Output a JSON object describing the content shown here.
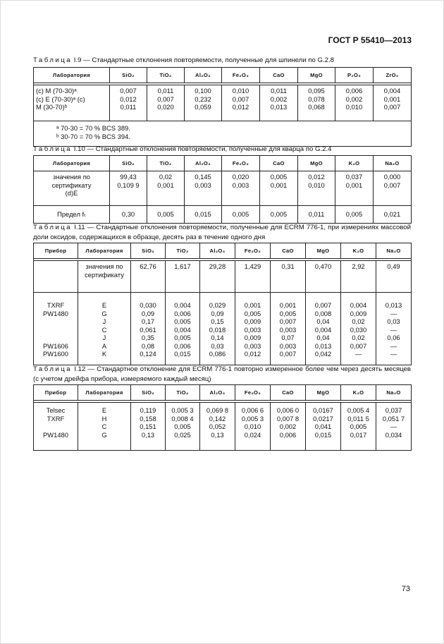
{
  "header": {
    "doc_code": "ГОСТ Р 55410—2013"
  },
  "page_number": "73",
  "tables": [
    {
      "caption_word": "Таблица",
      "caption_text": "I.9 — Стандартные отклонения повторяемости, полученные для шпинели по G.2.8",
      "columns": [
        "Лаборатория",
        "SiO₂",
        "TiO₂",
        "Al₂O₃",
        "Fe₂O₃",
        "CaO",
        "MgO",
        "P₂O₅",
        "ZrO₂"
      ],
      "rows": [
        [
          [
            "(с) M (70-30)ᵃ",
            "(с) E (70-30)ᵃ (с)",
            "M (30-70)ᵇ"
          ],
          [
            "0,007",
            "0,012",
            "0,011"
          ],
          [
            "0,011",
            "0,007",
            "0,020"
          ],
          [
            "0,100",
            "0,232",
            "0,059"
          ],
          [
            "0,010",
            "0,007",
            "0,012"
          ],
          [
            "0,011",
            "0,002",
            "0,013"
          ],
          [
            "0,095",
            "0,078",
            "0,068"
          ],
          [
            "0,006",
            "0,002",
            "0,010"
          ],
          [
            "0,004",
            "0,001",
            "0,007"
          ]
        ]
      ],
      "footnotes": [
        "ᵃ 70-30 = 70 % BCS 389.",
        "ᵇ 30-70 = 70 % BCS 394."
      ]
    },
    {
      "caption_word": "Таблица",
      "caption_text": "I.10 — Стандартные отклонения повторяемости, полученные для кварца по G.2.4",
      "columns": [
        "Лаборатория",
        "SiO₂",
        "TiO₂",
        "Al₂O₃",
        "Fe₂O₃",
        "CaO",
        "MgO",
        "K₂O",
        "Na₂O"
      ],
      "rows": [
        [
          [
            "значения по",
            "сертификату",
            "(d)E"
          ],
          [
            "99,43",
            "0,109 9"
          ],
          [
            "0,02",
            "0,001"
          ],
          [
            "0,145",
            "0,003"
          ],
          [
            "0,020",
            "0,003"
          ],
          [
            "0,005",
            "0,001"
          ],
          [
            "0,012",
            "0,010"
          ],
          [
            "0,037",
            "0,001"
          ],
          [
            "0,000",
            "0,007"
          ]
        ],
        [
          [
            "Предел fₜ"
          ],
          [
            "0,30"
          ],
          [
            "0,005"
          ],
          [
            "0,015"
          ],
          [
            "0,005"
          ],
          [
            "0,005"
          ],
          [
            "0,011"
          ],
          [
            "0,005"
          ],
          [
            "0,021"
          ]
        ]
      ]
    },
    {
      "caption_word": "Таблица",
      "caption_text": "I.11 — Стандартные отклонения повторяемости, полученные для ECRM 776-1, при измерениях массовой доли оксидов, содержащихся в образце,  десять раз в течение одного дня",
      "columns": [
        "Прибор",
        "Лаборатория",
        "SiO₂",
        "TiO₂",
        "Al₂O₃",
        "Fe₂O₃",
        "CaO",
        "MgO",
        "K₂O",
        "Na₂O"
      ],
      "rows": [
        [
          [
            ""
          ],
          [
            "значения по",
            "сертификату"
          ],
          [
            "62,76"
          ],
          [
            "1,617"
          ],
          [
            "29,28"
          ],
          [
            "1,429"
          ],
          [
            "0,31"
          ],
          [
            "0,470"
          ],
          [
            "2,92"
          ],
          [
            "0,49"
          ]
        ],
        [
          [
            "TXRF",
            "PW1480",
            "",
            "",
            "",
            "PW1606",
            "PW1600"
          ],
          [
            "E",
            "G",
            "J",
            "C",
            "J",
            "A",
            "K"
          ],
          [
            "0,030",
            "0,09",
            "0,17",
            "0,061",
            "0,35",
            "0,08",
            "0,124"
          ],
          [
            "0,004",
            "0,006",
            "0,005",
            "0,004",
            "0,005",
            "0,006",
            "0,015"
          ],
          [
            "0,029",
            "0,09",
            "0,15",
            "0,018",
            "0,14",
            "0,03",
            "0,086"
          ],
          [
            "0,001",
            "0,005",
            "0,009",
            "0,003",
            "0,009",
            "0,003",
            "0,012"
          ],
          [
            "0,001",
            "0,005",
            "0,007",
            "0,003",
            "0,07",
            "0,003",
            "0,007"
          ],
          [
            "0,007",
            "0,008",
            "0,04",
            "0,004",
            "0,04",
            "0,013",
            "0,042"
          ],
          [
            "0,004",
            "0,009",
            "0,02",
            "0,030",
            "0,02",
            "0,007",
            "—"
          ],
          [
            "0,013",
            "—",
            "0,03",
            "—",
            "0,06",
            "—",
            "—"
          ]
        ]
      ]
    },
    {
      "caption_word": "Таблица",
      "caption_text": "I.12 — Стандартное отклонение для ECRM 776-1 повторно измеренное более чем через десять месяцев (с учетом дрейфа прибора, измеряемого каждый месяц)",
      "columns": [
        "Прибор",
        "Лаборатория",
        "SiO₂",
        "TiO₂",
        "Al₂O₃",
        "Fe₂O₃",
        "CaO",
        "MgO",
        "K₂O",
        "Na₂O"
      ],
      "rows": [
        [
          [
            "Telsec",
            "TXRF",
            "",
            "PW1480"
          ],
          [
            "E",
            "H",
            "C",
            "G"
          ],
          [
            "0,119",
            "0,158",
            "0,151",
            "0,13"
          ],
          [
            "0,005 3",
            "0,008 4",
            "0,005",
            "0,025"
          ],
          [
            "0,069 8",
            "0,142",
            "0,052",
            "0,13"
          ],
          [
            "0,006 6",
            "0,005 3",
            "0,010",
            "0,024"
          ],
          [
            "0,006 0",
            "0,007 8",
            "0,002",
            "0,006"
          ],
          [
            "0,0167",
            "0,0217",
            "0,041",
            "0,015"
          ],
          [
            "0,005 4",
            "0,011 5",
            "0,005",
            "0,017"
          ],
          [
            "0,037",
            "0,051 7",
            "—",
            "0,034"
          ]
        ]
      ]
    }
  ]
}
